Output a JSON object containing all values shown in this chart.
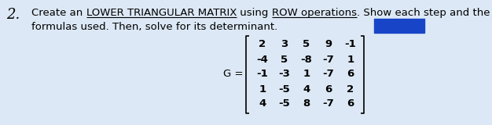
{
  "number": "2.",
  "text_line1_parts": [
    {
      "text": "Create an ",
      "style": "normal"
    },
    {
      "text": "LOWER TRIANGULAR MATRIX",
      "style": "underline"
    },
    {
      "text": " using ",
      "style": "normal"
    },
    {
      "text": "ROW operations",
      "style": "underline"
    },
    {
      "text": ". Show each step and the",
      "style": "normal"
    }
  ],
  "text_line2": "formulas used. Then, solve for its determinant.",
  "matrix_label": "G =",
  "matrix": [
    [
      "2",
      "3",
      "5",
      "9",
      "-1"
    ],
    [
      "-4",
      "5",
      "-8",
      "-7",
      "1"
    ],
    [
      "-1",
      "-3",
      "1",
      "-7",
      "6"
    ],
    [
      "1",
      "-5",
      "4",
      "6",
      "2"
    ],
    [
      "4",
      "-5",
      "8",
      "-7",
      "6"
    ]
  ],
  "bg_color": "#dce8f5",
  "text_color": "#000000",
  "body_font_size": 9.5,
  "number_font_size": 13,
  "matrix_font_size": 9.5,
  "blue_rect_color": "#1845c8",
  "figwidth": 6.26,
  "figheight": 1.6,
  "dpi": 100
}
